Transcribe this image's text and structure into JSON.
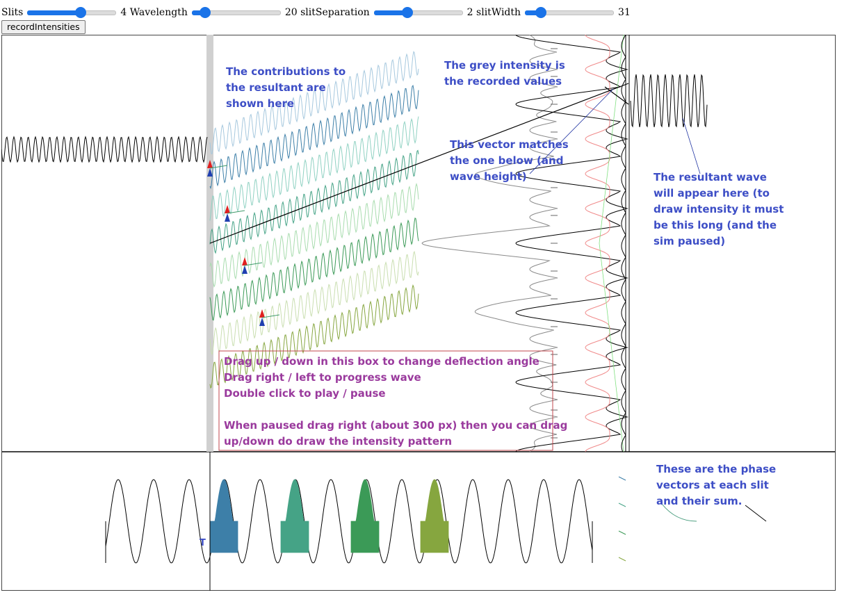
{
  "controls": {
    "sliders": [
      {
        "label": "Slits",
        "value_text": "4",
        "fraction": 0.6
      },
      {
        "label": "Wavelength",
        "value_text": "20",
        "fraction": 0.15
      },
      {
        "label": "slitSeparation",
        "value_text": "2",
        "fraction": 0.38
      },
      {
        "label": "slitWidth",
        "value_text": "31",
        "fraction": 0.18
      }
    ],
    "record_button": "recordIntensities"
  },
  "annotations": {
    "contributions": [
      "The contributions to",
      "the resultant are",
      "shown here"
    ],
    "grey_intensity": [
      "The grey intensity is",
      "the recorded values"
    ],
    "vector_match": [
      "This vector matches",
      "the one below (and",
      "wave height)"
    ],
    "resultant_wave": [
      "The resultant wave",
      "will appear here (to",
      "draw intensity it must",
      "be this long (and the",
      "sim paused)"
    ],
    "drag_box": [
      "Drag up / down in this box to change deflection angle",
      "Drag right / left to progress wave",
      "Double click to play / pause",
      "",
      "When paused drag right (about 300 px) then  you can drag",
      "up/down  do draw the intensity pattern"
    ],
    "phase_vectors": [
      "These are the phase",
      "vectors at each slit",
      "and their sum."
    ],
    "marker": "T"
  },
  "colors": {
    "slider_accent": "#1a73e8",
    "annotation_blue": "#3d4ec6",
    "annotation_purple": "#9a3a9d",
    "drag_box_border": "#c0474e",
    "slit_colors": [
      "#3d7fa8",
      "#45a386",
      "#3b9a57",
      "#86a63f"
    ]
  }
}
